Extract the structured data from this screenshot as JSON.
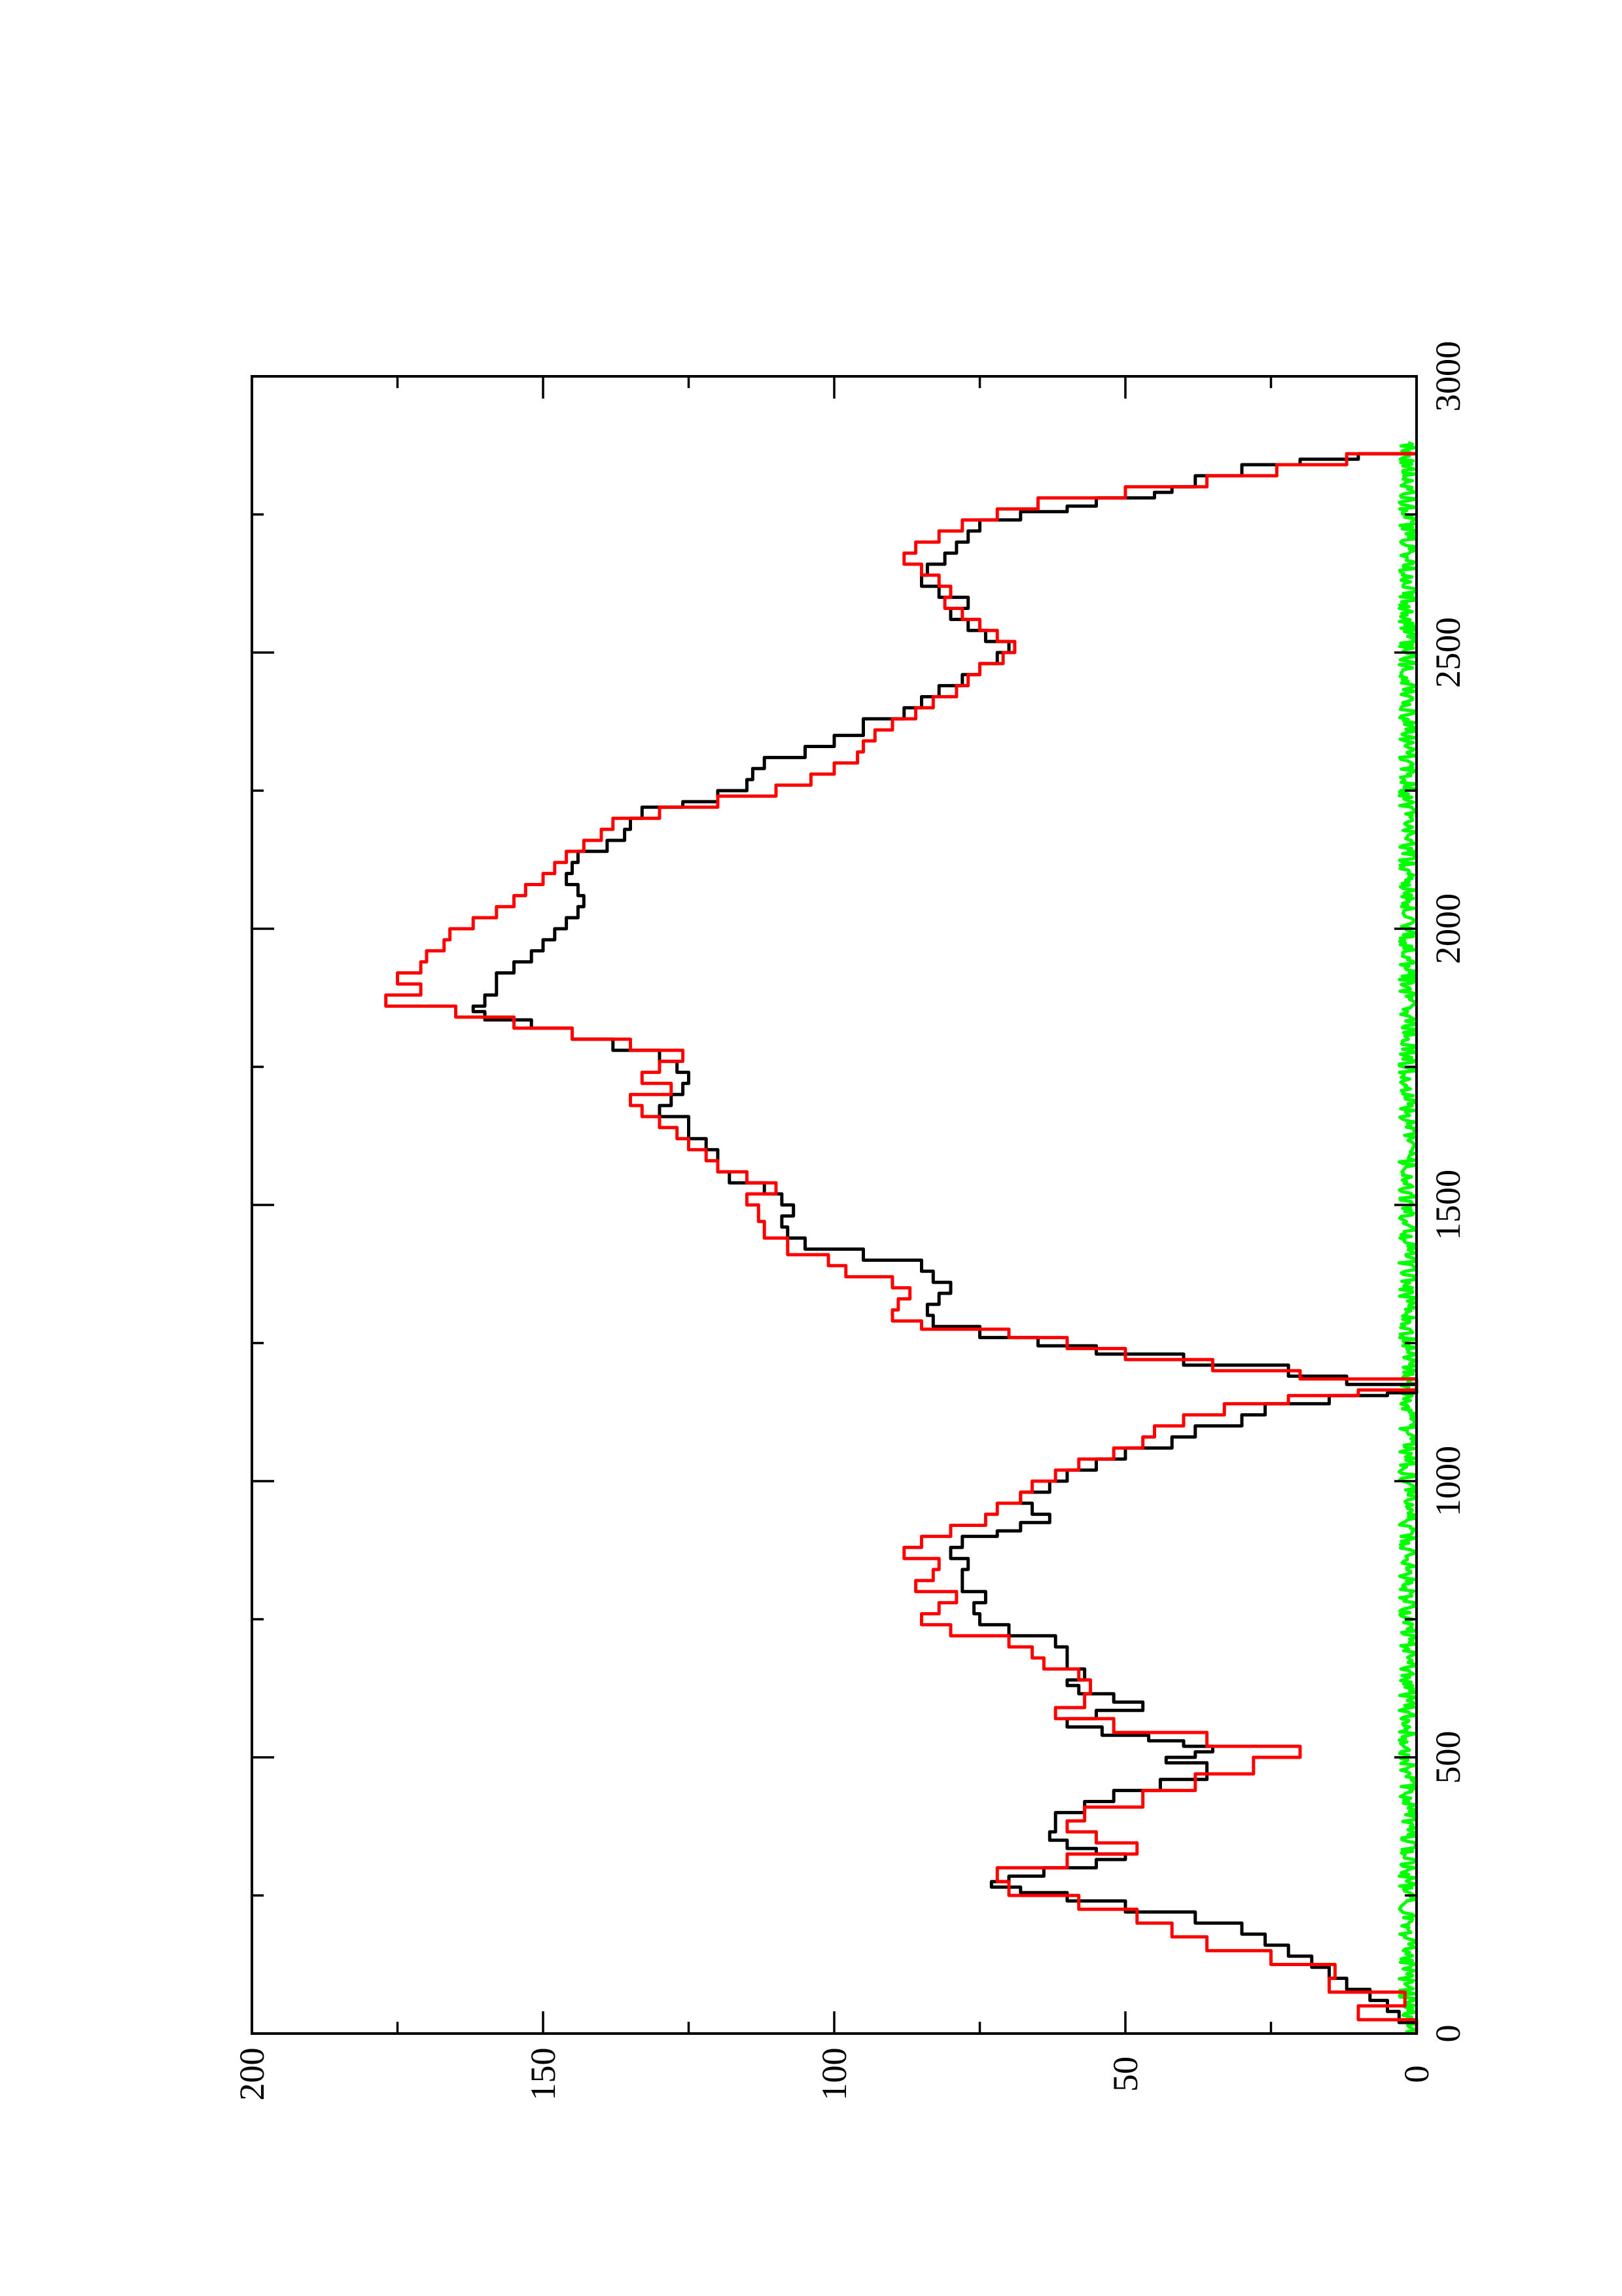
{
  "chart_data": {
    "type": "line",
    "orientation": "rotated-90-counterclockwise",
    "title": "",
    "xlabel": "",
    "ylabel": "",
    "xlim": [
      0,
      3000
    ],
    "ylim": [
      0,
      200
    ],
    "x_ticks": [
      0,
      500,
      1000,
      1500,
      2000,
      2500,
      3000
    ],
    "y_ticks": [
      0,
      50,
      100,
      150,
      200
    ],
    "grid": false,
    "legend": "none",
    "series": [
      {
        "color": "#000000",
        "style": "step",
        "points": [
          [
            0,
            0
          ],
          [
            20,
            3
          ],
          [
            40,
            5
          ],
          [
            60,
            8
          ],
          [
            80,
            12
          ],
          [
            100,
            15
          ],
          [
            120,
            18
          ],
          [
            140,
            22
          ],
          [
            160,
            26
          ],
          [
            180,
            30
          ],
          [
            200,
            38
          ],
          [
            220,
            50
          ],
          [
            240,
            60
          ],
          [
            255,
            68
          ],
          [
            265,
            73
          ],
          [
            275,
            70
          ],
          [
            285,
            64
          ],
          [
            300,
            55
          ],
          [
            315,
            50
          ],
          [
            325,
            55
          ],
          [
            335,
            60
          ],
          [
            350,
            63
          ],
          [
            365,
            62
          ],
          [
            380,
            62
          ],
          [
            400,
            57
          ],
          [
            420,
            52
          ],
          [
            440,
            44
          ],
          [
            460,
            36
          ],
          [
            480,
            36
          ],
          [
            490,
            43
          ],
          [
            500,
            38
          ],
          [
            510,
            35
          ],
          [
            520,
            40
          ],
          [
            530,
            46
          ],
          [
            540,
            54
          ],
          [
            555,
            60
          ],
          [
            570,
            55
          ],
          [
            585,
            47
          ],
          [
            600,
            52
          ],
          [
            615,
            58
          ],
          [
            630,
            60
          ],
          [
            640,
            57
          ],
          [
            660,
            60
          ],
          [
            680,
            60
          ],
          [
            700,
            62
          ],
          [
            720,
            70
          ],
          [
            740,
            75
          ],
          [
            760,
            76
          ],
          [
            780,
            74
          ],
          [
            800,
            78
          ],
          [
            820,
            78
          ],
          [
            840,
            77
          ],
          [
            860,
            80
          ],
          [
            880,
            78
          ],
          [
            900,
            72
          ],
          [
            910,
            68
          ],
          [
            925,
            63
          ],
          [
            940,
            66
          ],
          [
            960,
            68
          ],
          [
            980,
            63
          ],
          [
            1000,
            60
          ],
          [
            1020,
            55
          ],
          [
            1040,
            50
          ],
          [
            1060,
            42
          ],
          [
            1080,
            38
          ],
          [
            1100,
            30
          ],
          [
            1120,
            26
          ],
          [
            1140,
            15
          ],
          [
            1155,
            5
          ],
          [
            1160,
            0
          ],
          [
            1175,
            12
          ],
          [
            1190,
            22
          ],
          [
            1210,
            40
          ],
          [
            1230,
            55
          ],
          [
            1245,
            65
          ],
          [
            1260,
            75
          ],
          [
            1280,
            83
          ],
          [
            1300,
            84
          ],
          [
            1320,
            82
          ],
          [
            1340,
            80
          ],
          [
            1360,
            83
          ],
          [
            1380,
            85
          ],
          [
            1400,
            95
          ],
          [
            1420,
            105
          ],
          [
            1440,
            108
          ],
          [
            1460,
            109
          ],
          [
            1480,
            107
          ],
          [
            1500,
            109
          ],
          [
            1520,
            112
          ],
          [
            1540,
            118
          ],
          [
            1560,
            120
          ],
          [
            1580,
            120
          ],
          [
            1600,
            122
          ],
          [
            1620,
            125
          ],
          [
            1640,
            125
          ],
          [
            1660,
            130
          ],
          [
            1680,
            128
          ],
          [
            1700,
            126
          ],
          [
            1720,
            125
          ],
          [
            1740,
            127
          ],
          [
            1760,
            130
          ],
          [
            1780,
            138
          ],
          [
            1800,
            145
          ],
          [
            1820,
            152
          ],
          [
            1835,
            160
          ],
          [
            1850,
            162
          ],
          [
            1860,
            160
          ],
          [
            1880,
            158
          ],
          [
            1900,
            158
          ],
          [
            1920,
            155
          ],
          [
            1940,
            152
          ],
          [
            1960,
            150
          ],
          [
            1980,
            148
          ],
          [
            2000,
            146
          ],
          [
            2020,
            144
          ],
          [
            2040,
            143
          ],
          [
            2060,
            144
          ],
          [
            2080,
            146
          ],
          [
            2100,
            145
          ],
          [
            2120,
            144
          ],
          [
            2140,
            139
          ],
          [
            2160,
            136
          ],
          [
            2180,
            135
          ],
          [
            2200,
            133
          ],
          [
            2220,
            126
          ],
          [
            2230,
            120
          ],
          [
            2250,
            115
          ],
          [
            2270,
            114
          ],
          [
            2290,
            112
          ],
          [
            2310,
            105
          ],
          [
            2330,
            100
          ],
          [
            2350,
            95
          ],
          [
            2380,
            88
          ],
          [
            2400,
            85
          ],
          [
            2420,
            82
          ],
          [
            2440,
            78
          ],
          [
            2460,
            75
          ],
          [
            2480,
            72
          ],
          [
            2500,
            70
          ],
          [
            2520,
            74
          ],
          [
            2540,
            77
          ],
          [
            2560,
            80
          ],
          [
            2580,
            77
          ],
          [
            2600,
            82
          ],
          [
            2620,
            85
          ],
          [
            2640,
            84
          ],
          [
            2660,
            81
          ],
          [
            2680,
            79
          ],
          [
            2700,
            77
          ],
          [
            2720,
            75
          ],
          [
            2740,
            68
          ],
          [
            2755,
            60
          ],
          [
            2765,
            55
          ],
          [
            2780,
            45
          ],
          [
            2790,
            42
          ],
          [
            2800,
            38
          ],
          [
            2820,
            30
          ],
          [
            2840,
            20
          ],
          [
            2850,
            10
          ],
          [
            2860,
            0
          ]
        ]
      },
      {
        "color": "#ff0000",
        "style": "step",
        "points": [
          [
            0,
            0
          ],
          [
            25,
            10
          ],
          [
            50,
            2
          ],
          [
            75,
            15
          ],
          [
            100,
            14
          ],
          [
            125,
            25
          ],
          [
            150,
            36
          ],
          [
            175,
            42
          ],
          [
            200,
            48
          ],
          [
            225,
            58
          ],
          [
            250,
            70
          ],
          [
            275,
            72
          ],
          [
            300,
            60
          ],
          [
            325,
            48
          ],
          [
            345,
            55
          ],
          [
            365,
            60
          ],
          [
            385,
            57
          ],
          [
            410,
            47
          ],
          [
            440,
            38
          ],
          [
            470,
            28
          ],
          [
            500,
            20
          ],
          [
            520,
            36
          ],
          [
            545,
            52
          ],
          [
            570,
            62
          ],
          [
            590,
            57
          ],
          [
            615,
            56
          ],
          [
            640,
            58
          ],
          [
            660,
            64
          ],
          [
            680,
            66
          ],
          [
            700,
            70
          ],
          [
            720,
            80
          ],
          [
            740,
            85
          ],
          [
            760,
            82
          ],
          [
            780,
            79
          ],
          [
            800,
            86
          ],
          [
            820,
            83
          ],
          [
            840,
            82
          ],
          [
            860,
            88
          ],
          [
            880,
            85
          ],
          [
            900,
            80
          ],
          [
            920,
            74
          ],
          [
            940,
            72
          ],
          [
            960,
            68
          ],
          [
            980,
            66
          ],
          [
            1000,
            62
          ],
          [
            1020,
            58
          ],
          [
            1040,
            52
          ],
          [
            1060,
            47
          ],
          [
            1080,
            45
          ],
          [
            1100,
            40
          ],
          [
            1120,
            33
          ],
          [
            1140,
            22
          ],
          [
            1155,
            10
          ],
          [
            1165,
            0
          ],
          [
            1185,
            20
          ],
          [
            1200,
            35
          ],
          [
            1220,
            50
          ],
          [
            1240,
            60
          ],
          [
            1260,
            70
          ],
          [
            1275,
            85
          ],
          [
            1290,
            90
          ],
          [
            1310,
            89
          ],
          [
            1330,
            87
          ],
          [
            1350,
            90
          ],
          [
            1370,
            98
          ],
          [
            1390,
            101
          ],
          [
            1410,
            108
          ],
          [
            1440,
            112
          ],
          [
            1470,
            113
          ],
          [
            1500,
            115
          ],
          [
            1520,
            110
          ],
          [
            1540,
            115
          ],
          [
            1560,
            120
          ],
          [
            1580,
            122
          ],
          [
            1600,
            125
          ],
          [
            1620,
            127
          ],
          [
            1640,
            130
          ],
          [
            1660,
            133
          ],
          [
            1680,
            135
          ],
          [
            1700,
            128
          ],
          [
            1720,
            133
          ],
          [
            1740,
            130
          ],
          [
            1760,
            126
          ],
          [
            1780,
            135
          ],
          [
            1800,
            145
          ],
          [
            1820,
            155
          ],
          [
            1840,
            165
          ],
          [
            1860,
            177
          ],
          [
            1880,
            171
          ],
          [
            1900,
            175
          ],
          [
            1920,
            171
          ],
          [
            1940,
            170
          ],
          [
            1960,
            167
          ],
          [
            1980,
            166
          ],
          [
            2000,
            162
          ],
          [
            2020,
            158
          ],
          [
            2040,
            155
          ],
          [
            2060,
            153
          ],
          [
            2080,
            150
          ],
          [
            2100,
            148
          ],
          [
            2120,
            146
          ],
          [
            2140,
            143
          ],
          [
            2160,
            140
          ],
          [
            2180,
            138
          ],
          [
            2200,
            130
          ],
          [
            2220,
            120
          ],
          [
            2240,
            110
          ],
          [
            2260,
            104
          ],
          [
            2280,
            100
          ],
          [
            2300,
            96
          ],
          [
            2320,
            95
          ],
          [
            2340,
            93
          ],
          [
            2360,
            90
          ],
          [
            2380,
            86
          ],
          [
            2400,
            83
          ],
          [
            2420,
            79
          ],
          [
            2440,
            77
          ],
          [
            2460,
            75
          ],
          [
            2480,
            71
          ],
          [
            2500,
            69
          ],
          [
            2520,
            72
          ],
          [
            2540,
            75
          ],
          [
            2560,
            78
          ],
          [
            2580,
            81
          ],
          [
            2600,
            80
          ],
          [
            2620,
            82
          ],
          [
            2640,
            85
          ],
          [
            2660,
            88
          ],
          [
            2680,
            86
          ],
          [
            2700,
            82
          ],
          [
            2720,
            78
          ],
          [
            2740,
            72
          ],
          [
            2760,
            65
          ],
          [
            2780,
            50
          ],
          [
            2800,
            36
          ],
          [
            2820,
            24
          ],
          [
            2840,
            12
          ],
          [
            2860,
            0
          ]
        ]
      },
      {
        "color": "#00ff00",
        "style": "noise",
        "baseline": 0,
        "amplitude": 3,
        "x_range": [
          0,
          2880
        ]
      }
    ]
  }
}
